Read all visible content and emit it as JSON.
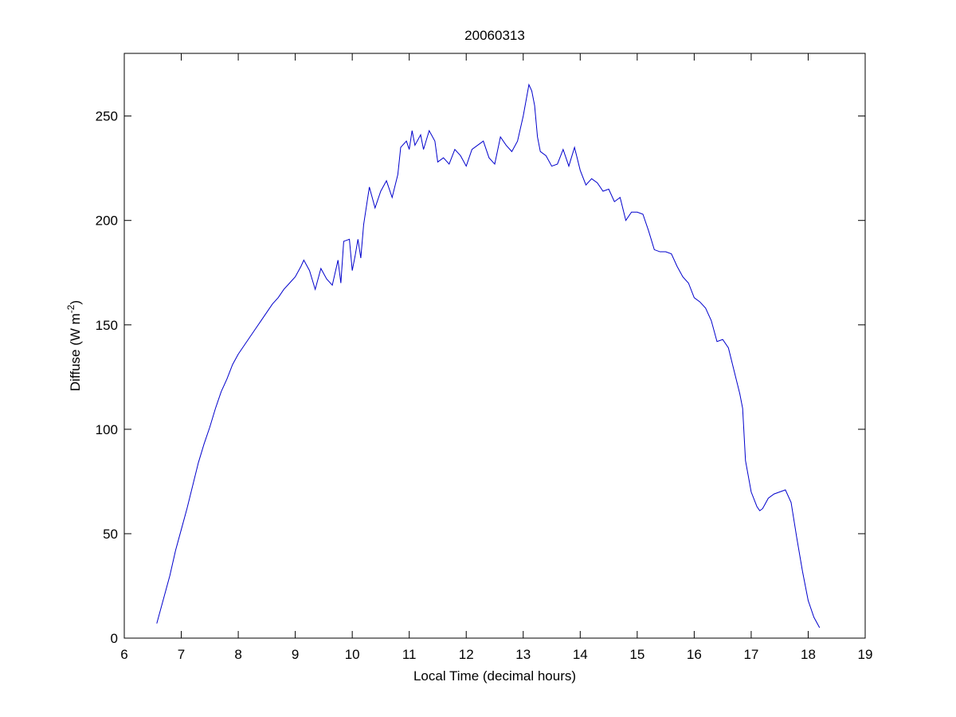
{
  "chart_data": {
    "type": "line",
    "title": "20060313",
    "x_label": "Local Time (decimal hours)",
    "y_label": {
      "text": "Diffuse (W m",
      "superscript": "-2",
      "suffix": ")"
    },
    "xlim": [
      6,
      19
    ],
    "xticks": [
      6,
      7,
      8,
      9,
      10,
      11,
      12,
      13,
      14,
      15,
      16,
      17,
      18,
      19
    ],
    "ylim": [
      0,
      280
    ],
    "yticks": [
      0,
      50,
      100,
      150,
      200,
      250
    ],
    "grid": false,
    "x": [
      6.57,
      6.7,
      6.8,
      6.9,
      7.0,
      7.1,
      7.2,
      7.3,
      7.4,
      7.5,
      7.6,
      7.7,
      7.8,
      7.9,
      8.0,
      8.1,
      8.2,
      8.3,
      8.4,
      8.5,
      8.6,
      8.7,
      8.8,
      8.9,
      9.0,
      9.1,
      9.15,
      9.25,
      9.35,
      9.45,
      9.55,
      9.65,
      9.75,
      9.8,
      9.85,
      9.95,
      10.0,
      10.05,
      10.1,
      10.15,
      10.2,
      10.3,
      10.4,
      10.5,
      10.6,
      10.7,
      10.8,
      10.85,
      10.95,
      11.0,
      11.05,
      11.1,
      11.2,
      11.25,
      11.35,
      11.45,
      11.5,
      11.6,
      11.7,
      11.8,
      11.9,
      12.0,
      12.1,
      12.2,
      12.3,
      12.4,
      12.5,
      12.6,
      12.7,
      12.8,
      12.9,
      13.0,
      13.1,
      13.15,
      13.2,
      13.25,
      13.3,
      13.4,
      13.5,
      13.6,
      13.7,
      13.8,
      13.9,
      14.0,
      14.1,
      14.2,
      14.3,
      14.4,
      14.5,
      14.6,
      14.7,
      14.8,
      14.9,
      15.0,
      15.1,
      15.2,
      15.3,
      15.4,
      15.5,
      15.6,
      15.7,
      15.8,
      15.9,
      16.0,
      16.1,
      16.2,
      16.3,
      16.4,
      16.5,
      16.6,
      16.7,
      16.8,
      16.85,
      16.9,
      17.0,
      17.1,
      17.15,
      17.2,
      17.3,
      17.4,
      17.5,
      17.6,
      17.7,
      17.8,
      17.9,
      18.0,
      18.1,
      18.2
    ],
    "series": [
      {
        "color": "#0000cc",
        "values": [
          7,
          20,
          30,
          42,
          52,
          62,
          73,
          84,
          93,
          101,
          110,
          118,
          124,
          131,
          136,
          140,
          144,
          148,
          152,
          156,
          160,
          163,
          167,
          170,
          173,
          178,
          181,
          176,
          167,
          177,
          172,
          169,
          181,
          170,
          190,
          191,
          176,
          183,
          191,
          182,
          198,
          216,
          206,
          214,
          219,
          211,
          222,
          235,
          238,
          234,
          243,
          236,
          241,
          234,
          243,
          238,
          228,
          230,
          227,
          234,
          231,
          226,
          234,
          236,
          238,
          230,
          227,
          240,
          236,
          233,
          238,
          250,
          265,
          262,
          255,
          240,
          233,
          231,
          226,
          227,
          234,
          226,
          235,
          224,
          217,
          220,
          218,
          214,
          215,
          209,
          211,
          200,
          204,
          204,
          203,
          195,
          186,
          185,
          185,
          184,
          178,
          173,
          170,
          163,
          161,
          158,
          152,
          142,
          143,
          139,
          128,
          117,
          110,
          85,
          70,
          63,
          61,
          62,
          67,
          69,
          70,
          71,
          65,
          48,
          32,
          18,
          10,
          5
        ]
      }
    ]
  }
}
